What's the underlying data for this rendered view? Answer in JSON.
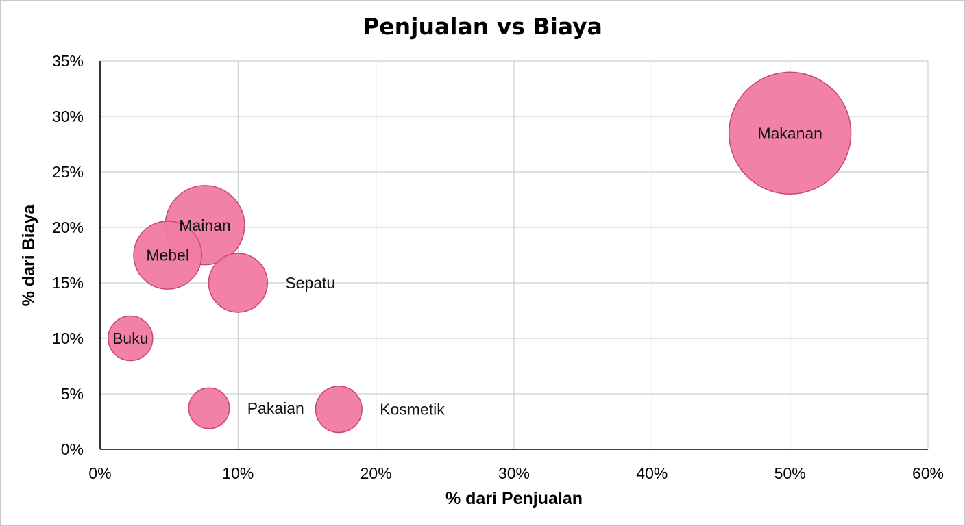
{
  "chart_data": {
    "type": "bubble",
    "title": "Penjualan vs Biaya",
    "xlabel": "% dari Penjualan",
    "ylabel": "% dari Biaya",
    "xlim": [
      0,
      60
    ],
    "ylim": [
      0,
      35
    ],
    "x_ticks": [
      "0%",
      "10%",
      "20%",
      "30%",
      "40%",
      "50%",
      "60%"
    ],
    "y_ticks": [
      "0%",
      "5%",
      "10%",
      "15%",
      "20%",
      "25%",
      "30%",
      "35%"
    ],
    "grid": true,
    "bubble_color": "#f07aa0",
    "bubble_edge_color": "#c8457a",
    "points": [
      {
        "label": "Makanan",
        "x": 50,
        "y": 28.5,
        "size": 9.0,
        "label_position": "center"
      },
      {
        "label": "Mainan",
        "x": 7.6,
        "y": 20.2,
        "size": 3.8,
        "label_position": "center"
      },
      {
        "label": "Mebel",
        "x": 4.9,
        "y": 17.5,
        "size": 2.8,
        "label_position": "center"
      },
      {
        "label": "Sepatu",
        "x": 10.0,
        "y": 15.0,
        "size": 2.1,
        "label_position": "right"
      },
      {
        "label": "Buku",
        "x": 2.2,
        "y": 10.0,
        "size": 1.2,
        "label_position": "center"
      },
      {
        "label": "Pakaian",
        "x": 7.9,
        "y": 3.7,
        "size": 1.0,
        "label_position": "right"
      },
      {
        "label": "Kosmetik",
        "x": 17.3,
        "y": 3.6,
        "size": 1.3,
        "label_position": "right"
      }
    ]
  }
}
